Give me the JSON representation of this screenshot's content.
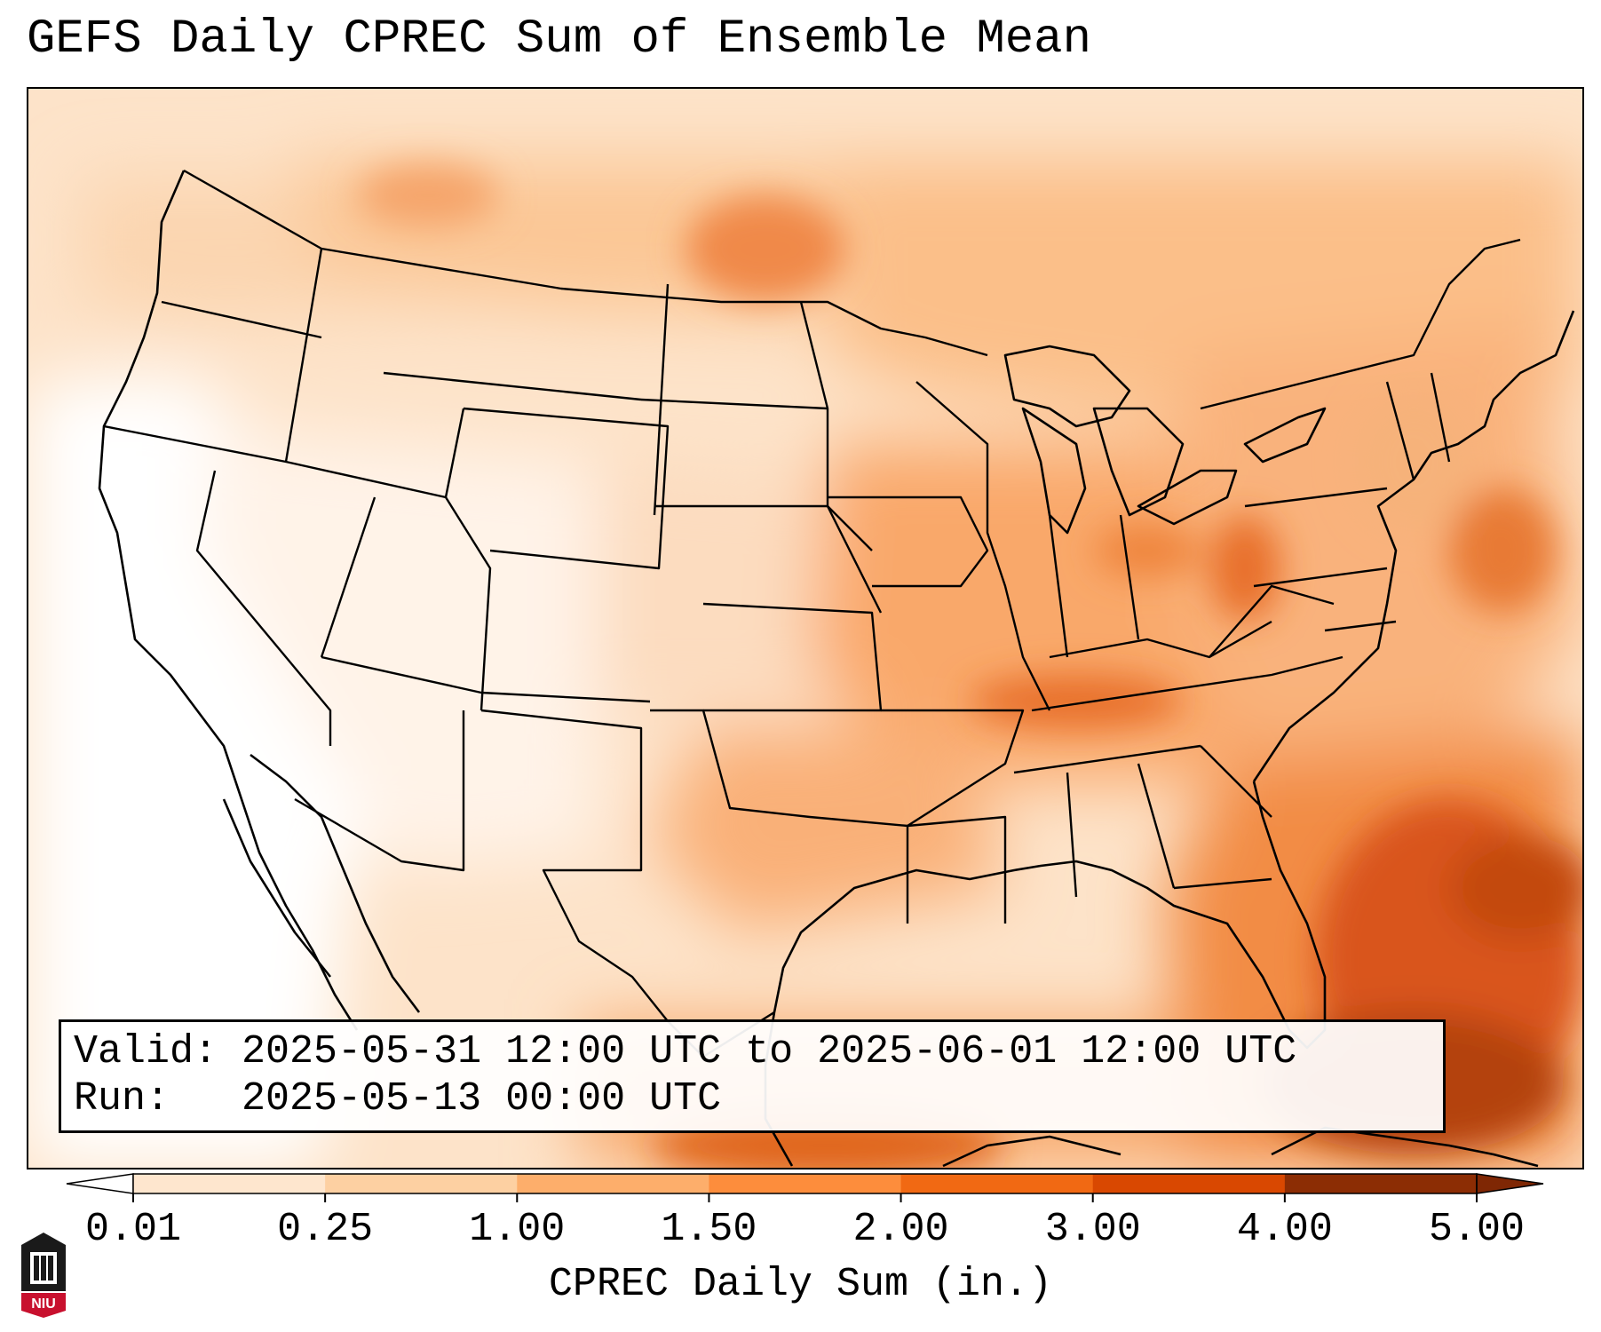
{
  "title": "GEFS Daily CPREC Sum of Ensemble Mean",
  "info": {
    "valid_label": "Valid:",
    "valid_value": "2025-05-31 12:00 UTC to 2025-06-01 12:00 UTC",
    "run_label": "Run:",
    "run_value": "2025-05-13 00:00 UTC"
  },
  "colorbar": {
    "label": "CPREC Daily Sum (in.)",
    "ticks": [
      "0.01",
      "0.25",
      "1.00",
      "1.50",
      "2.00",
      "3.00",
      "4.00",
      "5.00"
    ],
    "colors": [
      "#fff5eb",
      "#fee6ce",
      "#fdd0a2",
      "#fdae6b",
      "#fd8d3c",
      "#f16913",
      "#d94801",
      "#8c2d04"
    ],
    "under_color": "#ffffff",
    "over_color": "#7f2704"
  },
  "logo": {
    "text": "NIU",
    "icon": "niu-university-logo-icon"
  }
}
